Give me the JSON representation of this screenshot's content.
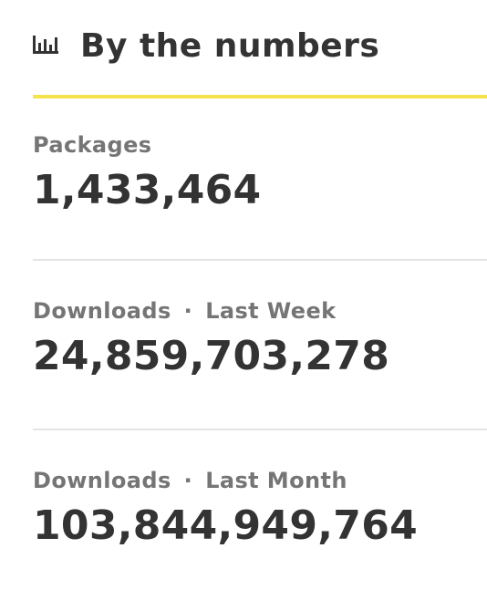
{
  "header": {
    "icon": "bar-chart-icon",
    "title": "By the numbers",
    "accent_color": "#f6e24b"
  },
  "stats": [
    {
      "label": "Packages",
      "value": "1,433,464"
    },
    {
      "label": "Downloads",
      "separator": "·",
      "period": "Last Week",
      "value": "24,859,703,278"
    },
    {
      "label": "Downloads",
      "separator": "·",
      "period": "Last Month",
      "value": "103,844,949,764"
    }
  ]
}
